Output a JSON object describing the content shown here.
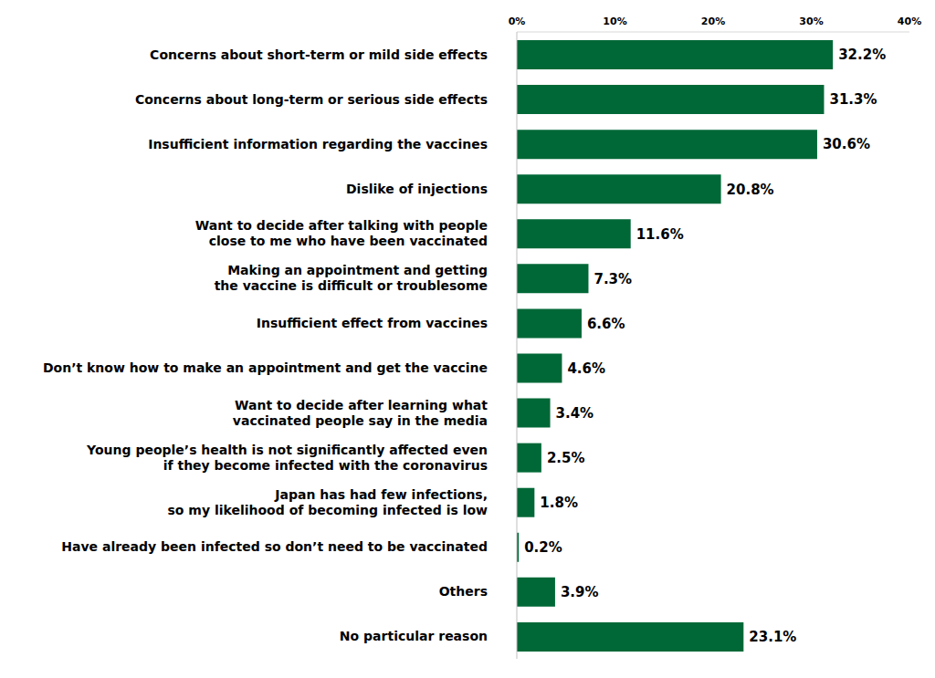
{
  "chart_data": {
    "type": "bar",
    "orientation": "horizontal",
    "categories": [
      "Concerns about short-term or mild side effects",
      "Concerns about long-term or serious side effects",
      "Insufficient information regarding the vaccines",
      "Dislike of injections",
      "Want to decide after talking with people\nclose to me who have been vaccinated",
      "Making an appointment and getting\nthe vaccine is difficult or troublesome",
      "Insufficient effect from vaccines",
      "Don’t know how to make an appointment and get the vaccine",
      "Want to decide after learning what\nvaccinated people say in the media",
      "Young people’s health is not significantly affected even\nif they become infected with the coronavirus",
      "Japan has had few infections,\nso my likelihood of becoming infected is low",
      "Have already been infected so don’t need to be vaccinated",
      "Others",
      "No particular reason"
    ],
    "values": [
      32.2,
      31.3,
      30.6,
      20.8,
      11.6,
      7.3,
      6.6,
      4.6,
      3.4,
      2.5,
      1.8,
      0.2,
      3.9,
      23.1
    ],
    "value_labels": [
      "32.2%",
      "31.3%",
      "30.6%",
      "20.8%",
      "11.6%",
      "7.3%",
      "6.6%",
      "4.6%",
      "3.4%",
      "2.5%",
      "1.8%",
      "0.2%",
      "3.9%",
      "23.1%"
    ],
    "color": "#006837",
    "xlim": [
      0,
      40
    ],
    "xticks": [
      {
        "value": 0,
        "label": "0%"
      },
      {
        "value": 10,
        "label": "10%"
      },
      {
        "value": 20,
        "label": "20%"
      },
      {
        "value": 30,
        "label": "30%"
      },
      {
        "value": 40,
        "label": "40%"
      }
    ],
    "grid": false,
    "data_labels": true
  }
}
